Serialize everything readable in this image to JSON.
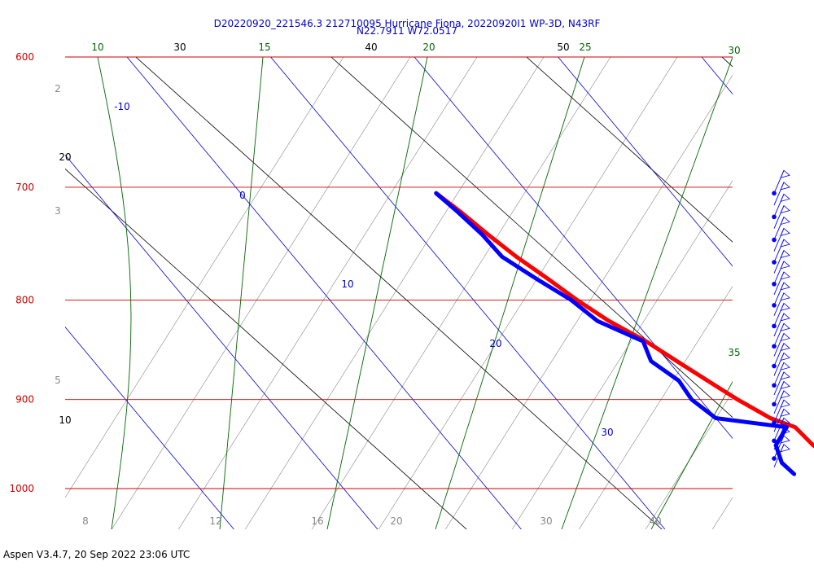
{
  "header": {
    "title_line1": "D20220920_221546.3 212710095 Hurricane Fiona, 20220920I1 WP-3D, N43RF",
    "title_line2": "N22.7911 W72.0517"
  },
  "footer": {
    "text": "Aspen V3.4.7, 20 Sep 2022  23:06 UTC"
  },
  "colors": {
    "isobar": "#cc0000",
    "isotherm": "#0000cc",
    "mixing_ratio": "#006600",
    "dry_adiabat": "#000000",
    "moist_adiabat": "#888888",
    "temperature": "#ff0000",
    "dewpoint": "#0000ff",
    "wind": "#0000ff"
  },
  "chart_data": {
    "type": "skew-t",
    "y_axis": {
      "label": "Pressure (hPa)",
      "scale": "log",
      "range": [
        1050,
        600
      ],
      "ticks": [
        600,
        700,
        800,
        900,
        1000
      ],
      "tick_labels": [
        "600",
        "700",
        "800",
        "900",
        "1000"
      ]
    },
    "isotherms": {
      "values": [
        -10,
        0,
        10,
        20,
        30
      ],
      "labels": [
        "-10",
        "0",
        "10",
        "20",
        "30"
      ]
    },
    "mixing_ratio": {
      "values": [
        10,
        15,
        20,
        25,
        30,
        35
      ],
      "labels": [
        "10",
        "15",
        "20",
        "25",
        "30",
        "35"
      ]
    },
    "dry_adiabats": {
      "values": [
        10,
        20,
        30,
        40,
        50
      ],
      "labels": [
        "10",
        "20",
        "30",
        "40",
        "50"
      ]
    },
    "moist_adiabats_left": {
      "values": [
        2,
        3,
        5
      ],
      "labels": [
        "2",
        "3",
        "5"
      ]
    },
    "bottom_labels": {
      "values": [
        8,
        12,
        16,
        20,
        30,
        40
      ],
      "labels": [
        "8",
        "12",
        "16",
        "20",
        "30",
        "40"
      ]
    },
    "series": [
      {
        "name": "temperature",
        "points": [
          {
            "p": 705,
            "t": 13.6
          },
          {
            "p": 720,
            "t": 14.2
          },
          {
            "p": 740,
            "t": 14.8
          },
          {
            "p": 760,
            "t": 15.5
          },
          {
            "p": 780,
            "t": 16.4
          },
          {
            "p": 800,
            "t": 17.2
          },
          {
            "p": 820,
            "t": 18.2
          },
          {
            "p": 840,
            "t": 19.6
          },
          {
            "p": 860,
            "t": 20.6
          },
          {
            "p": 880,
            "t": 21.6
          },
          {
            "p": 900,
            "t": 22.6
          },
          {
            "p": 920,
            "t": 23.8
          },
          {
            "p": 930,
            "t": 25.0
          },
          {
            "p": 950,
            "t": 25.2
          },
          {
            "p": 970,
            "t": 26.0
          },
          {
            "p": 983,
            "t": 27.0
          }
        ]
      },
      {
        "name": "dewpoint",
        "points": [
          {
            "p": 705,
            "t": 13.6
          },
          {
            "p": 720,
            "t": 14.0
          },
          {
            "p": 740,
            "t": 14.4
          },
          {
            "p": 760,
            "t": 14.5
          },
          {
            "p": 780,
            "t": 15.6
          },
          {
            "p": 800,
            "t": 16.8
          },
          {
            "p": 820,
            "t": 17.4
          },
          {
            "p": 840,
            "t": 19.4
          },
          {
            "p": 860,
            "t": 18.8
          },
          {
            "p": 880,
            "t": 19.6
          },
          {
            "p": 900,
            "t": 19.4
          },
          {
            "p": 920,
            "t": 20.0
          },
          {
            "p": 930,
            "t": 24.4
          },
          {
            "p": 950,
            "t": 22.6
          },
          {
            "p": 970,
            "t": 22.0
          },
          {
            "p": 983,
            "t": 22.2
          }
        ]
      }
    ],
    "wind_pressures": [
      705,
      715,
      725,
      735,
      745,
      755,
      765,
      775,
      785,
      795,
      805,
      815,
      825,
      835,
      845,
      855,
      865,
      875,
      885,
      895,
      905,
      915,
      925,
      935,
      945,
      955,
      965,
      975
    ]
  }
}
